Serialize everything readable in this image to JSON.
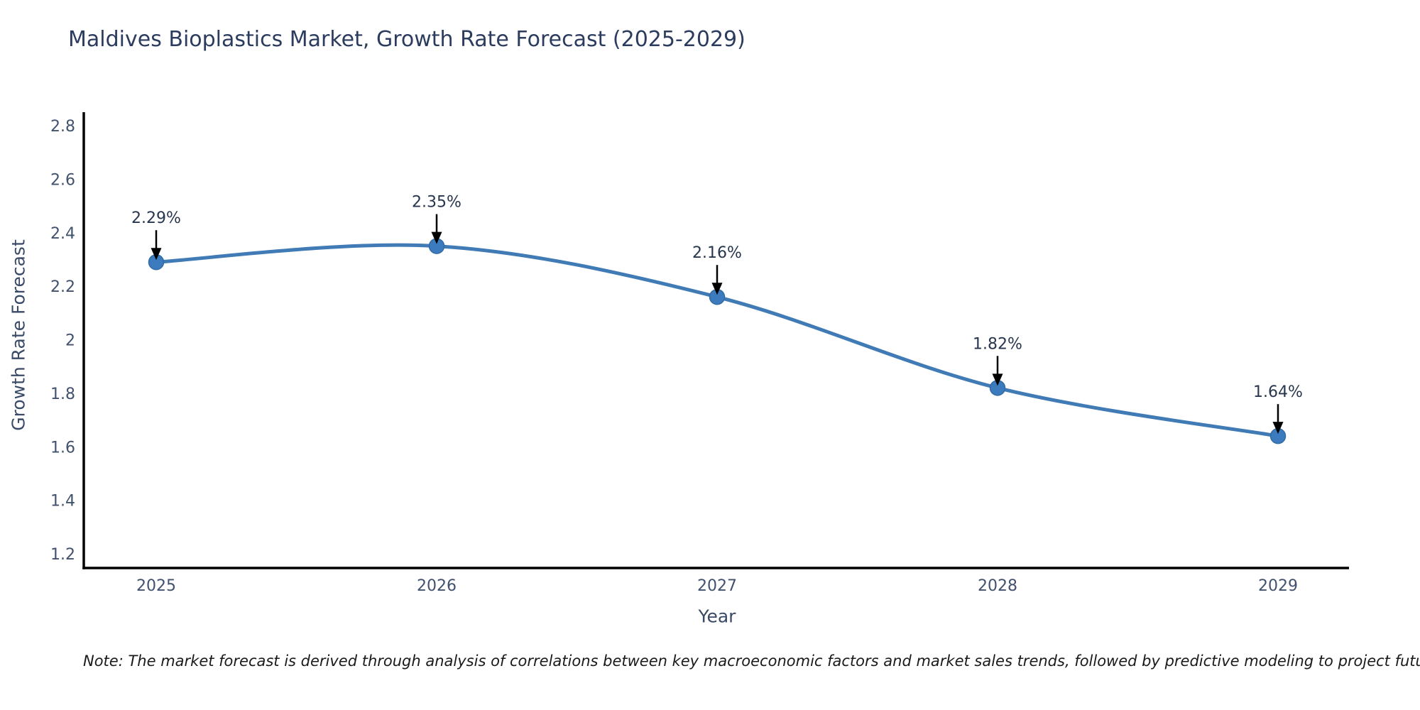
{
  "page": {
    "background": "#ffffff"
  },
  "chart_data": {
    "type": "line",
    "title": "Maldives Bioplastics Market, Growth Rate Forecast (2025-2029)",
    "xlabel": "Year",
    "ylabel": "Growth Rate Forecast",
    "x": [
      2025,
      2026,
      2027,
      2028,
      2029
    ],
    "series": [
      {
        "name": "Growth Rate Forecast",
        "values": [
          2.29,
          2.35,
          2.16,
          1.82,
          1.64
        ]
      }
    ],
    "point_labels": [
      "2.29%",
      "2.35%",
      "2.16%",
      "1.82%",
      "1.64%"
    ],
    "xtick_labels": [
      "2025",
      "2026",
      "2027",
      "2028",
      "2029"
    ],
    "ytick_values": [
      2.8,
      2.6,
      2.4,
      2.2,
      2.0,
      1.8,
      1.6,
      1.4,
      1.2
    ],
    "ytick_labels": [
      "2.8",
      "2.6",
      "2.4",
      "2.2",
      "2",
      "1.8",
      "1.6",
      "1.4",
      "1.2"
    ],
    "ylim": [
      1.15,
      2.85
    ],
    "line_shape": "spline",
    "grid": false,
    "legend": "none",
    "annotations_have_arrows": true,
    "colors": {
      "line": "#407bb5",
      "marker_fill": "#3c7bbd",
      "marker_edge": "#326ba6",
      "axis_line": "#000000",
      "tick_text": "#42516d",
      "title_text": "#2c3c5e",
      "axis_title_text": "#3a4a66",
      "annotation_text": "#27364e",
      "arrow": "#000000"
    }
  },
  "note": {
    "text": "Note: The market forecast is derived through analysis of correlations between key macroeconomic factors and market sales trends, followed by predictive modeling to project future sales"
  }
}
